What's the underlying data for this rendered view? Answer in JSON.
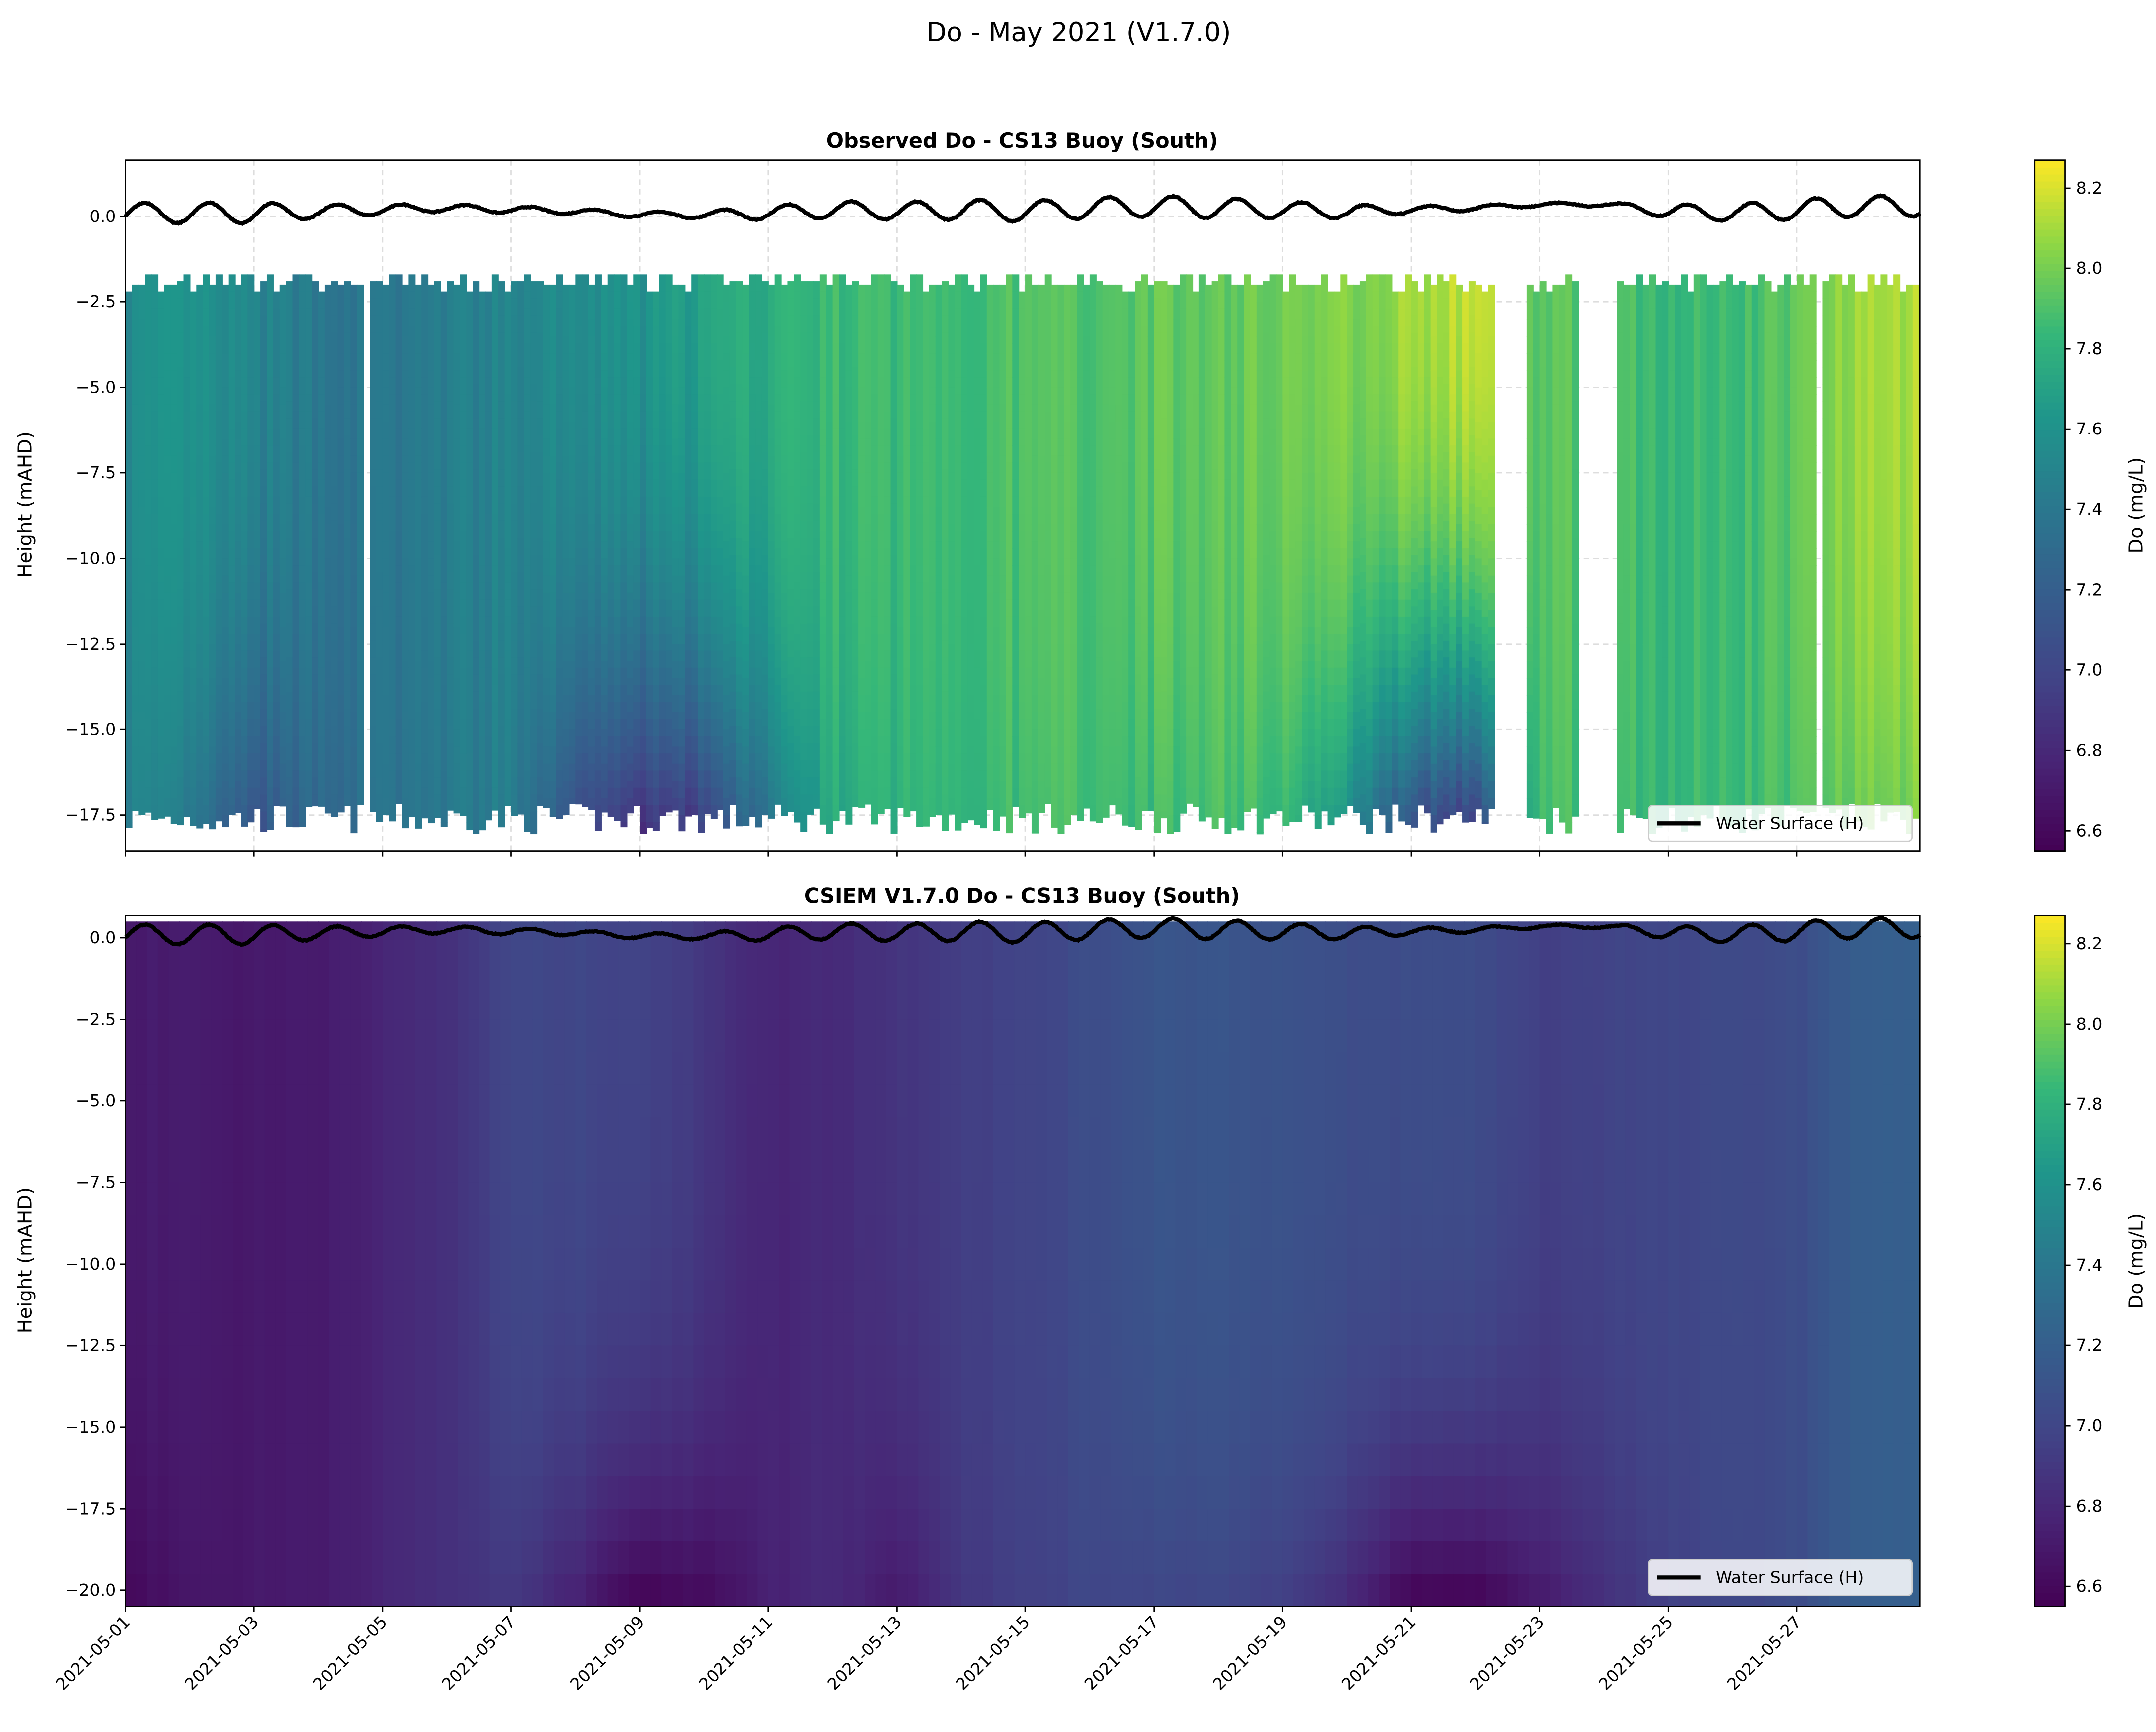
{
  "figure_title": "Do - May 2021 (V1.7.0)",
  "legend_label": "Water Surface (H)",
  "colors": {
    "line": "#000000",
    "grid": "#dddddd"
  },
  "chart_data": [
    {
      "type": "heatmap",
      "title": "Observed Do - CS13 Buoy (South)",
      "xlabel": "",
      "ylabel": "Height (mAHD)",
      "colorbar_label": "Do (mg/L)",
      "colormap": "viridis",
      "clim": [
        6.55,
        8.27
      ],
      "colorbar_ticks": [
        "6.6",
        "6.8",
        "7.0",
        "7.2",
        "7.4",
        "7.6",
        "7.8",
        "8.0",
        "8.2"
      ],
      "xlim_days_from_2021-05-01": [
        0,
        27.92
      ],
      "ylim": [
        -18.55,
        1.65
      ],
      "yticks": [
        "0.0",
        "-2.5",
        "-5.0",
        "-7.5",
        "-10.0",
        "-12.5",
        "-15.0",
        "-17.5"
      ],
      "grid": true,
      "legend": "lower-right",
      "data_top_depth": -2.0,
      "data_bottom_depth": -17.6,
      "gaps_days": [
        [
          3.72,
          3.78
        ],
        [
          4.58,
          4.64
        ],
        [
          21.35,
          21.85
        ],
        [
          22.64,
          23.2
        ],
        [
          26.3,
          26.42
        ]
      ],
      "daily_upper_do": [
        7.55,
        7.6,
        7.5,
        7.42,
        7.38,
        7.45,
        7.5,
        7.55,
        7.6,
        7.7,
        7.78,
        7.85,
        7.85,
        7.88,
        7.9,
        7.92,
        7.95,
        7.95,
        8.0,
        8.02,
        8.1,
        8.15,
        7.95,
        7.9,
        7.85,
        7.85,
        7.95,
        8.12
      ],
      "daily_bottom_do": [
        7.5,
        7.4,
        7.1,
        7.3,
        7.35,
        7.4,
        7.45,
        7.1,
        6.85,
        6.95,
        7.4,
        7.75,
        7.8,
        7.85,
        7.85,
        7.9,
        7.85,
        7.9,
        7.85,
        7.6,
        7.1,
        6.95,
        7.9,
        7.85,
        7.85,
        7.85,
        7.9,
        8.0
      ],
      "water_surface": {
        "daily_mean": [
          0.1,
          0.1,
          0.1,
          0.15,
          0.2,
          0.25,
          0.2,
          0.15,
          0.05,
          0.05,
          0.1,
          0.2,
          0.15,
          0.2,
          0.15,
          0.25,
          0.3,
          0.25,
          0.2,
          0.15,
          0.2,
          0.25,
          0.35,
          0.35,
          0.15,
          0.1,
          0.2,
          0.3
        ],
        "daily_amplitude": [
          0.3,
          0.3,
          0.3,
          0.2,
          0.15,
          0.1,
          0.1,
          0.08,
          0.08,
          0.1,
          0.2,
          0.25,
          0.25,
          0.3,
          0.3,
          0.3,
          0.3,
          0.3,
          0.25,
          0.2,
          0.1,
          0.08,
          0.05,
          0.05,
          0.2,
          0.25,
          0.3,
          0.3
        ]
      }
    },
    {
      "type": "heatmap",
      "title": "CSIEM V1.7.0 Do - CS13 Buoy (South)",
      "xlabel": "",
      "ylabel": "Height (mAHD)",
      "colorbar_label": "Do (mg/L)",
      "colormap": "viridis",
      "clim": [
        6.55,
        8.27
      ],
      "colorbar_ticks": [
        "6.6",
        "6.8",
        "7.0",
        "7.2",
        "7.4",
        "7.6",
        "7.8",
        "8.0",
        "8.2"
      ],
      "xlim_days_from_2021-05-01": [
        0,
        27.92
      ],
      "xticks": [
        "2021-05-01",
        "2021-05-03",
        "2021-05-05",
        "2021-05-07",
        "2021-05-09",
        "2021-05-11",
        "2021-05-13",
        "2021-05-15",
        "2021-05-17",
        "2021-05-19",
        "2021-05-21",
        "2021-05-23",
        "2021-05-25",
        "2021-05-27"
      ],
      "ylim": [
        -20.5,
        0.68
      ],
      "yticks": [
        "0.0",
        "-2.5",
        "-5.0",
        "-7.5",
        "-10.0",
        "-12.5",
        "-15.0",
        "-17.5",
        "-20.0"
      ],
      "grid": false,
      "legend": "lower-right",
      "data_bottom_depth": -20.5,
      "daily_upper_do": [
        6.72,
        6.72,
        6.7,
        6.72,
        6.78,
        6.85,
        7.0,
        7.0,
        6.98,
        6.9,
        6.78,
        6.82,
        6.88,
        6.95,
        6.98,
        7.05,
        7.12,
        7.12,
        7.1,
        7.05,
        7.05,
        7.05,
        6.95,
        6.98,
        7.0,
        7.02,
        7.05,
        7.2
      ],
      "daily_bottom_do": [
        6.6,
        6.68,
        6.7,
        6.72,
        6.78,
        6.85,
        6.9,
        6.75,
        6.55,
        6.6,
        6.75,
        6.82,
        6.7,
        6.9,
        6.95,
        7.0,
        7.0,
        7.0,
        6.95,
        6.8,
        6.55,
        6.55,
        6.7,
        6.85,
        6.95,
        7.0,
        7.05,
        7.2
      ]
    }
  ]
}
